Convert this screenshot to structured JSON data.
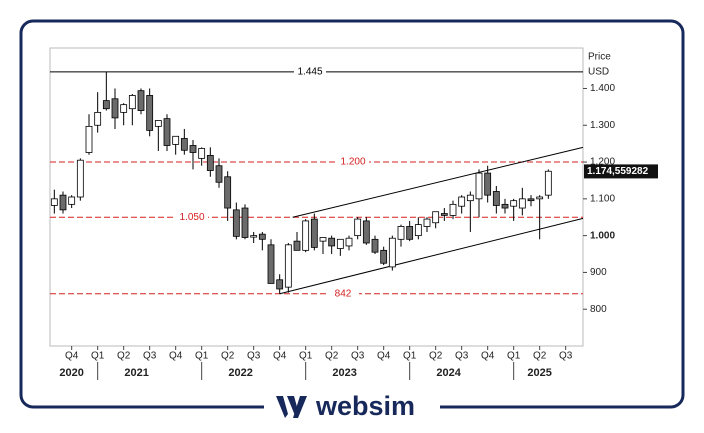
{
  "chart_data": {
    "type": "candlestick",
    "y_axis_title": [
      "Price",
      "USD"
    ],
    "quarters": [
      "Q4",
      "Q1",
      "Q2",
      "Q3",
      "Q4",
      "Q1",
      "Q2",
      "Q3",
      "Q4",
      "Q1",
      "Q2",
      "Q3",
      "Q4",
      "Q1",
      "Q2",
      "Q3",
      "Q4",
      "Q1",
      "Q2",
      "Q3"
    ],
    "years": [
      "2020",
      "2021",
      "2022",
      "2023",
      "2024",
      "2025"
    ],
    "xlim": [
      -0.5,
      61
    ],
    "ylim": [
      700,
      1510
    ],
    "yticks": [
      800,
      900,
      {
        "value": 1000,
        "label": "1.000"
      },
      {
        "value": 1100,
        "label": "1.100"
      },
      {
        "value": 1200,
        "label": "1.200"
      },
      {
        "value": 1300,
        "label": "1.300"
      },
      {
        "value": 1400,
        "label": "1.400"
      }
    ],
    "open": [
      1082,
      1110,
      1085,
      1105,
      1226,
      1300,
      1367,
      1372,
      1335,
      1345,
      1394,
      1381,
      1297,
      1318,
      1248,
      1264,
      1245,
      1210,
      1218,
      1190,
      1160,
      1070,
      1075,
      996,
      1004,
      975,
      880,
      860,
      985,
      960,
      1045,
      985,
      993,
      965,
      972,
      1000,
      1040,
      990,
      960,
      915,
      990,
      1025,
      1000,
      1025,
      1035,
      1060,
      1055,
      1080,
      1095,
      1100,
      1170,
      1120,
      1085,
      1080,
      1075,
      1100,
      1100,
      1110
    ],
    "high": [
      1125,
      1120,
      1110,
      1210,
      1330,
      1390,
      1445,
      1400,
      1360,
      1385,
      1400,
      1400,
      1310,
      1330,
      1270,
      1290,
      1260,
      1240,
      1240,
      1210,
      1175,
      1090,
      1085,
      1010,
      1010,
      990,
      895,
      980,
      1010,
      1045,
      1060,
      995,
      1000,
      990,
      1000,
      1050,
      1050,
      1000,
      970,
      1000,
      1030,
      1040,
      1050,
      1050,
      1065,
      1075,
      1095,
      1110,
      1120,
      1180,
      1190,
      1135,
      1100,
      1100,
      1130,
      1110,
      1110,
      1180
    ],
    "low": [
      1060,
      1060,
      1075,
      1095,
      1220,
      1280,
      1340,
      1290,
      1300,
      1300,
      1330,
      1270,
      1230,
      1230,
      1220,
      1220,
      1180,
      1190,
      1160,
      1130,
      1040,
      990,
      990,
      980,
      960,
      870,
      842,
      845,
      960,
      955,
      960,
      950,
      950,
      945,
      960,
      990,
      975,
      950,
      920,
      905,
      970,
      985,
      990,
      1010,
      1020,
      1040,
      1045,
      1060,
      1010,
      1050,
      1090,
      1060,
      1060,
      1040,
      1055,
      1080,
      990,
      1100
    ],
    "close": [
      1100,
      1070,
      1105,
      1205,
      1297,
      1335,
      1345,
      1320,
      1356,
      1381,
      1340,
      1286,
      1313,
      1245,
      1270,
      1232,
      1226,
      1237,
      1177,
      1145,
      1075,
      998,
      995,
      1000,
      990,
      870,
      855,
      975,
      960,
      1040,
      968,
      995,
      972,
      990,
      993,
      1045,
      980,
      955,
      925,
      993,
      1025,
      990,
      1030,
      1045,
      1065,
      1055,
      1085,
      1105,
      1110,
      1170,
      1110,
      1082,
      1075,
      1095,
      1100,
      1095,
      1105,
      1175
    ],
    "up_color": "#ffffff",
    "down_color": "#6b6b6b",
    "levels": [
      {
        "value": 1445,
        "label": "1.445",
        "color": "#000000",
        "dashed": false
      },
      {
        "value": 1200,
        "label": "1.200",
        "color": "#d62020",
        "dashed": true
      },
      {
        "value": 1050,
        "label": "1.050",
        "color": "#d62020",
        "dashed": true
      },
      {
        "value": 842,
        "label": "842",
        "color": "#d62020",
        "dashed": true
      }
    ],
    "channel": [
      {
        "x": [
          26,
          61
        ],
        "values": [
          842,
          1047
        ]
      },
      {
        "x": [
          27.5,
          61
        ],
        "values": [
          1050,
          1240
        ]
      }
    ],
    "last_price": {
      "value": 1174.559282,
      "label": "1.174,559282"
    }
  },
  "footer": {
    "brand": "websim"
  }
}
